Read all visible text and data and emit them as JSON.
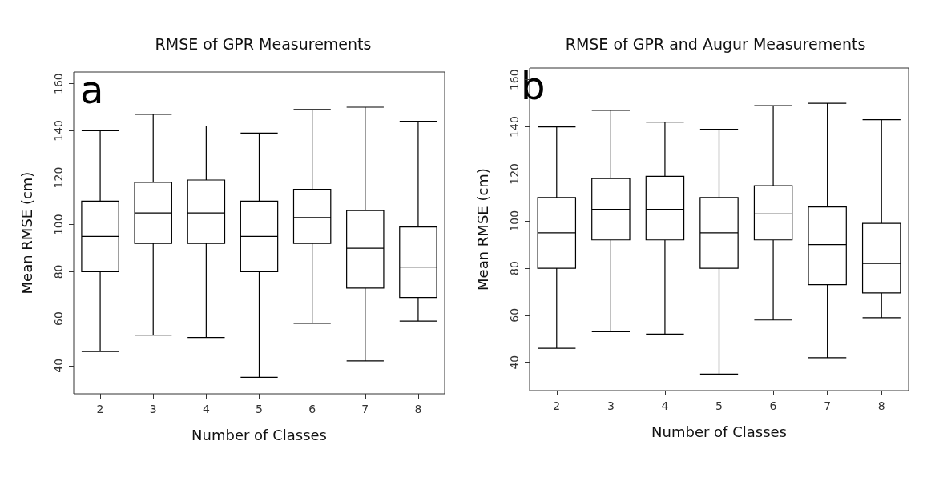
{
  "chart_data": [
    {
      "type": "box",
      "title": "RMSE of GPR Measurements",
      "xlabel": "Number of Classes",
      "ylabel": "Mean RMSE (cm)",
      "annotations": [
        "a"
      ],
      "categories": [
        "2",
        "3",
        "4",
        "5",
        "6",
        "7",
        "8"
      ],
      "color": "#000000",
      "ylim": [
        28,
        165
      ],
      "yticks": [
        40,
        60,
        80,
        100,
        120,
        140,
        160
      ],
      "boxes": [
        {
          "low": 46,
          "q1": 80,
          "median": 95,
          "q3": 110,
          "high": 140
        },
        {
          "low": 53,
          "q1": 92,
          "median": 105,
          "q3": 118,
          "high": 147
        },
        {
          "low": 52,
          "q1": 92,
          "median": 105,
          "q3": 119,
          "high": 142
        },
        {
          "low": 35,
          "q1": 80,
          "median": 95,
          "q3": 110,
          "high": 139
        },
        {
          "low": 58,
          "q1": 92,
          "median": 103,
          "q3": 115,
          "high": 149
        },
        {
          "low": 42,
          "q1": 73,
          "median": 90,
          "q3": 106,
          "high": 150
        },
        {
          "low": 59,
          "q1": 69,
          "median": 82,
          "q3": 99,
          "high": 144
        }
      ]
    },
    {
      "type": "box",
      "title": "RMSE of GPR and Augur Measurements",
      "xlabel": "Number of Classes",
      "ylabel": "Mean RMSE (cm)",
      "annotations": [
        "b"
      ],
      "categories": [
        "2",
        "3",
        "4",
        "5",
        "6",
        "7",
        "8"
      ],
      "color": "#000000",
      "ylim": [
        28,
        165
      ],
      "yticks": [
        40,
        60,
        80,
        100,
        120,
        140,
        160
      ],
      "boxes": [
        {
          "low": 46,
          "q1": 80,
          "median": 95,
          "q3": 110,
          "high": 140
        },
        {
          "low": 53,
          "q1": 92,
          "median": 105,
          "q3": 118,
          "high": 147
        },
        {
          "low": 52,
          "q1": 92,
          "median": 105,
          "q3": 119,
          "high": 142
        },
        {
          "low": 35,
          "q1": 80,
          "median": 95,
          "q3": 110,
          "high": 139
        },
        {
          "low": 58,
          "q1": 92,
          "median": 103,
          "q3": 115,
          "high": 149
        },
        {
          "low": 42,
          "q1": 73,
          "median": 90,
          "q3": 106,
          "high": 150
        },
        {
          "low": 59,
          "q1": 69.5,
          "median": 82,
          "q3": 99,
          "high": 143
        }
      ]
    }
  ]
}
